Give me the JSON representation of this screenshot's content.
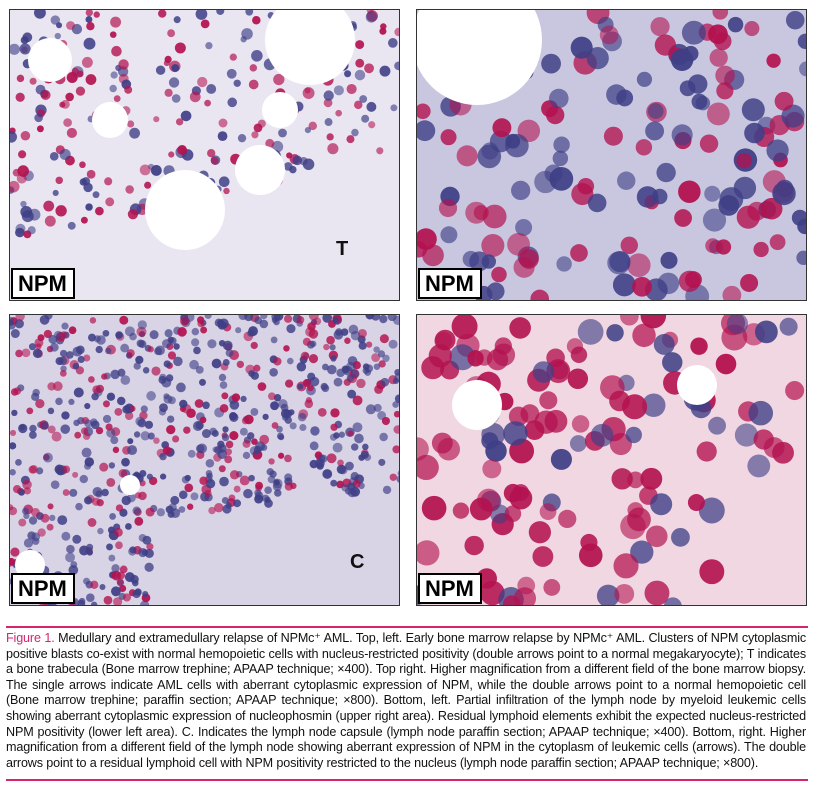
{
  "panels": [
    {
      "id": "top-left",
      "label": "NPM",
      "letter": "T",
      "bg": "#e9e6f2"
    },
    {
      "id": "top-right",
      "label": "NPM",
      "letter": "",
      "bg": "#c9c7e0"
    },
    {
      "id": "bottom-left",
      "label": "NPM",
      "letter": "C",
      "bg": "#d9d3e6"
    },
    {
      "id": "bottom-right",
      "label": "NPM",
      "letter": "",
      "bg": "#f0d7e2"
    }
  ],
  "colors": {
    "accent": "#d6246e",
    "stain_red": "#b3124f",
    "hematoxylin": "#3f3f86"
  },
  "caption": {
    "figure_label": "Figure 1.",
    "text": " Medullary and extramedullary relapse of NPMc⁺ AML. Top, left. Early bone marrow relapse by NPMc⁺ AML. Clusters of NPM cytoplasmic positive blasts co-exist with normal hemopoietic cells with nucleus-restricted positivity (double arrows point to a normal megakaryocyte); T indicates a bone trabecula (Bone marrow trephine; APAAP technique; ×400). Top right. Higher magnification from a different field of the bone marrow biopsy. The single arrows indicate AML cells with aberrant cytoplasmic expression of NPM, while the double arrows point to a normal hemopoietic cell (Bone marrow trephine; paraffin section; APAAP technique; ×800). Bottom, left. Partial infiltration of the lymph node by myeloid leukemic cells showing aberrant cytoplasmic expression of nucleophosmin (upper right area). Residual lymphoid elements exhibit the expected nucleus-restricted NPM positivity (lower left area). C. Indicates the lymph node capsule (lymph node paraffin section; APAAP technique; ×400). Bottom, right. Higher magnification from a different field of the lymph node showing aberrant expression of NPM in the cytoplasm of leukemic cells (arrows). The double arrows point to a residual lymphoid cell with NPM positivity restricted to the nucleus (lymph node paraffin section; APAAP technique; ×800)."
  }
}
